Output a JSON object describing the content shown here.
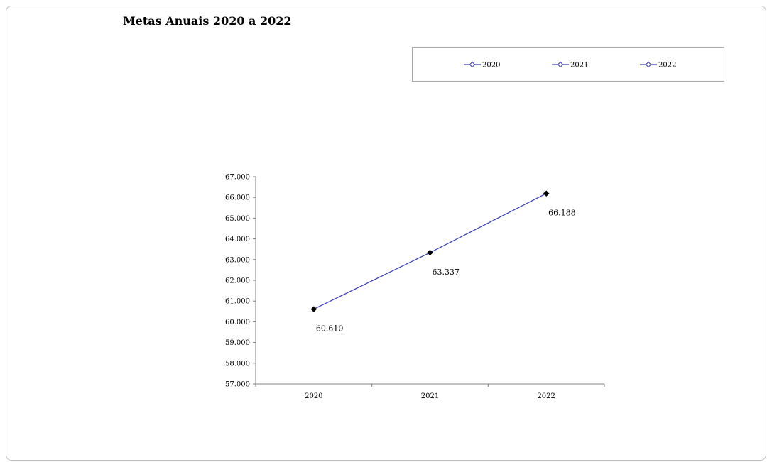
{
  "chart_data": {
    "type": "line",
    "title": "Metas Anuais 2020 a 2022",
    "xlabel": "",
    "ylabel": "",
    "categories": [
      "2020",
      "2021",
      "2022"
    ],
    "series": [
      {
        "values": [
          60610,
          63337,
          66188
        ]
      }
    ],
    "data_labels": [
      "60.610",
      "63.337",
      "66.188"
    ],
    "legend": [
      "2020",
      "2021",
      "2022"
    ],
    "legend_position": "top-right",
    "ylim": [
      57000,
      67000
    ],
    "y_ticks": [
      57000,
      58000,
      59000,
      60000,
      61000,
      62000,
      63000,
      64000,
      65000,
      66000,
      67000
    ],
    "y_tick_labels": [
      "57.000",
      "58.000",
      "59.000",
      "60.000",
      "61.000",
      "62.000",
      "63.000",
      "64.000",
      "65.000",
      "66.000",
      "67.000"
    ],
    "grid": false,
    "line_color": "#3a3ab8",
    "marker_color": "#000000"
  }
}
